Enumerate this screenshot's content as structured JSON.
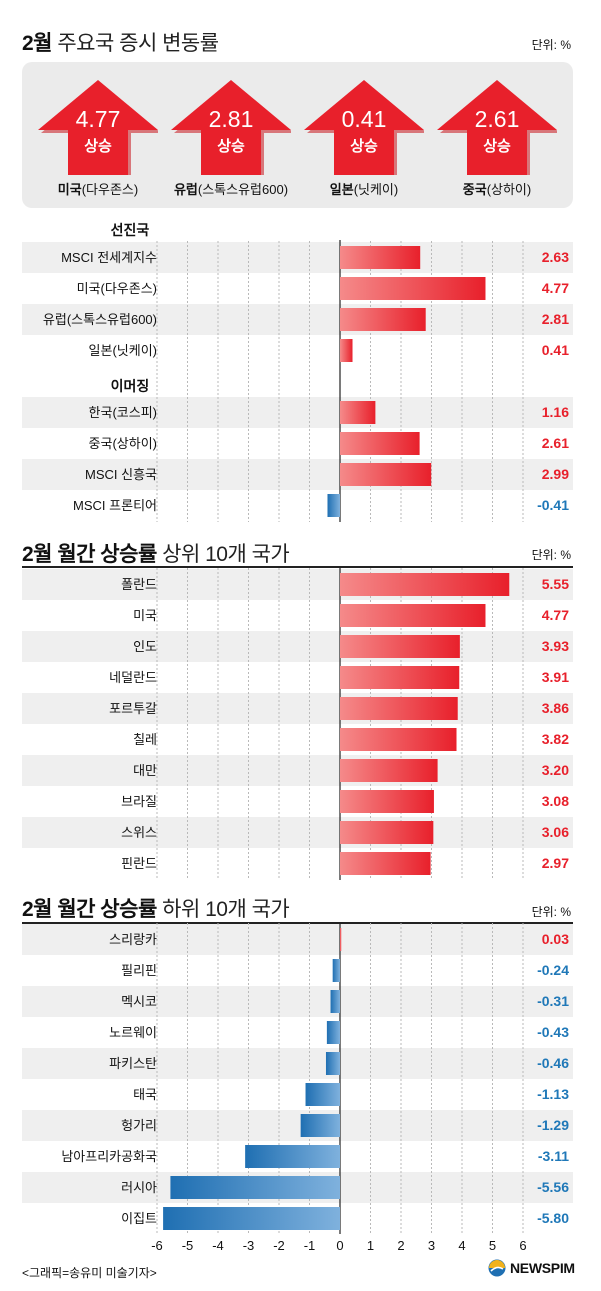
{
  "section1": {
    "title_bold": "2월",
    "title_rest": "주요국 증시 변동률",
    "unit": "단위: %",
    "summary": [
      {
        "value": "4.77",
        "status": "상승",
        "label_bold": "미국",
        "label_rest": "(다우존스)"
      },
      {
        "value": "2.81",
        "status": "상승",
        "label_bold": "유럽",
        "label_rest": "(스톡스유럽600)"
      },
      {
        "value": "0.41",
        "status": "상승",
        "label_bold": "일본",
        "label_rest": "(닛케이)"
      },
      {
        "value": "2.61",
        "status": "상승",
        "label_bold": "중국",
        "label_rest": "(상하이)"
      }
    ],
    "group_developed": "선진국",
    "group_emerging": "이머징"
  },
  "section2": {
    "title_bold": "2월 월간 상승률",
    "title_rest": "상위 10개 국가",
    "unit": "단위: %"
  },
  "section3": {
    "title_bold": "2월 월간 상승률",
    "title_rest": "하위 10개 국가",
    "unit": "단위: %"
  },
  "colors": {
    "positive": "#e8202b",
    "negative": "#1f78b8",
    "row_shade": "#efefef"
  },
  "chart_data": [
    {
      "type": "bar",
      "orientation": "horizontal",
      "categories": [
        "MSCI 전세계지수",
        "미국(다우존스)",
        "유럽(스톡스유럽600)",
        "일본(닛케이)",
        "한국(코스피)",
        "중국(상하이)",
        "MSCI 신흥국",
        "MSCI 프론티어"
      ],
      "values": [
        2.63,
        4.77,
        2.81,
        0.41,
        1.16,
        2.61,
        2.99,
        -0.41
      ],
      "value_labels": [
        "2.63",
        "4.77",
        "2.81",
        "0.41",
        "1.16",
        "2.61",
        "2.99",
        "-0.41"
      ],
      "xlim": [
        -6,
        6
      ],
      "grid": true
    },
    {
      "type": "bar",
      "orientation": "horizontal",
      "categories": [
        "폴란드",
        "미국",
        "인도",
        "네덜란드",
        "포르투갈",
        "칠레",
        "대만",
        "브라질",
        "스위스",
        "핀란드"
      ],
      "values": [
        5.55,
        4.77,
        3.93,
        3.91,
        3.86,
        3.82,
        3.2,
        3.08,
        3.06,
        2.97
      ],
      "value_labels": [
        "5.55",
        "4.77",
        "3.93",
        "3.91",
        "3.86",
        "3.82",
        "3.20",
        "3.08",
        "3.06",
        "2.97"
      ],
      "xlim": [
        -6,
        6
      ],
      "grid": true
    },
    {
      "type": "bar",
      "orientation": "horizontal",
      "categories": [
        "스리랑카",
        "필리핀",
        "멕시코",
        "노르웨이",
        "파키스탄",
        "태국",
        "헝가리",
        "남아프리카공화국",
        "러시아",
        "이집트"
      ],
      "values": [
        0.03,
        -0.24,
        -0.31,
        -0.43,
        -0.46,
        -1.13,
        -1.29,
        -3.11,
        -5.56,
        -5.8
      ],
      "value_labels": [
        "0.03",
        "-0.24",
        "-0.31",
        "-0.43",
        "-0.46",
        "-1.13",
        "-1.29",
        "-3.11",
        "-5.56",
        "-5.80"
      ],
      "xlim": [
        -6,
        6
      ],
      "xticks": [
        -6,
        -5,
        -4,
        -3,
        -2,
        -1,
        0,
        1,
        2,
        3,
        4,
        5,
        6
      ],
      "grid": true
    }
  ],
  "footer": {
    "credit": "<그래픽=송유미 미술기자>",
    "logo_text": "NEWSPIM"
  }
}
